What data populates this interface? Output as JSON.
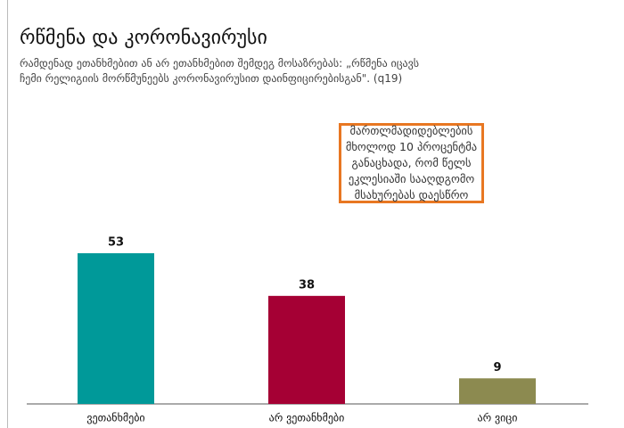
{
  "chart_data": {
    "type": "bar",
    "title": "რწმენა და კორონავირუსი",
    "subtitle": "რამდენად ეთანხმებით ან არ ეთანხმებით შემდეგ მოსაზრებას: „რწმენა იცავს ჩემი რელიგიის მორწმუნეებს კორონავირუსით დაინფიცირებისგან\". (q19)",
    "annotation": "მართლმადიდებლების მხოლოდ 10 პროცენტმა განაცხადა, რომ წელს ეკლესიაში სააღდგომო მსახურებას დაესწრო",
    "categories": [
      "ვეთანხმები",
      "არ ვეთანხმები",
      "არ ვიცი"
    ],
    "values": [
      53,
      38,
      9
    ],
    "colors": [
      "#009999",
      "#a50034",
      "#8c8a50"
    ]
  }
}
